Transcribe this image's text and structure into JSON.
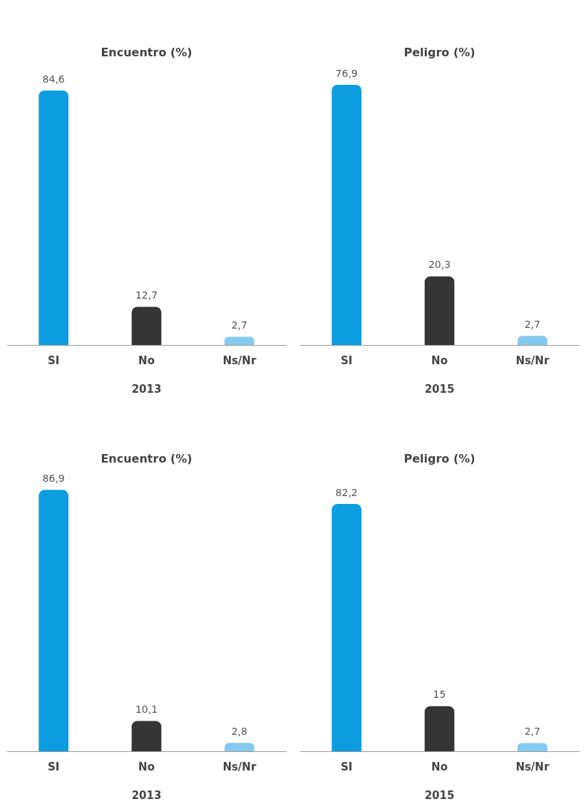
{
  "chart_data": [
    {
      "type": "bar",
      "title": "Encuentro (%)",
      "xlabel": "2013",
      "categories": [
        "SI",
        "No",
        "Ns/Nr"
      ],
      "values": [
        84.6,
        12.7,
        2.7
      ],
      "value_labels": [
        "84,6",
        "12,7",
        "2,7"
      ],
      "colors": [
        "#0b9de0",
        "#353535",
        "#86c9f0"
      ],
      "grid": false
    },
    {
      "type": "bar",
      "title": "Peligro (%)",
      "xlabel": "2015",
      "categories": [
        "SI",
        "No",
        "Ns/Nr"
      ],
      "values": [
        76.9,
        20.3,
        2.7
      ],
      "value_labels": [
        "76,9",
        "20,3",
        "2,7"
      ],
      "colors": [
        "#0b9de0",
        "#353535",
        "#86c9f0"
      ],
      "grid": false
    },
    {
      "type": "bar",
      "title": "Encuentro (%)",
      "xlabel": "2013",
      "categories": [
        "SI",
        "No",
        "Ns/Nr"
      ],
      "values": [
        86.9,
        10.1,
        2.8
      ],
      "value_labels": [
        "86,9",
        "10,1",
        "2,8"
      ],
      "colors": [
        "#0b9de0",
        "#353535",
        "#86c9f0"
      ],
      "grid": false
    },
    {
      "type": "bar",
      "title": "Peligro (%)",
      "xlabel": "2015",
      "categories": [
        "SI",
        "No",
        "Ns/Nr"
      ],
      "values": [
        82.2,
        15,
        2.7
      ],
      "value_labels": [
        "82,2",
        "15",
        "2,7"
      ],
      "colors": [
        "#0b9de0",
        "#353535",
        "#86c9f0"
      ],
      "grid": false
    }
  ]
}
